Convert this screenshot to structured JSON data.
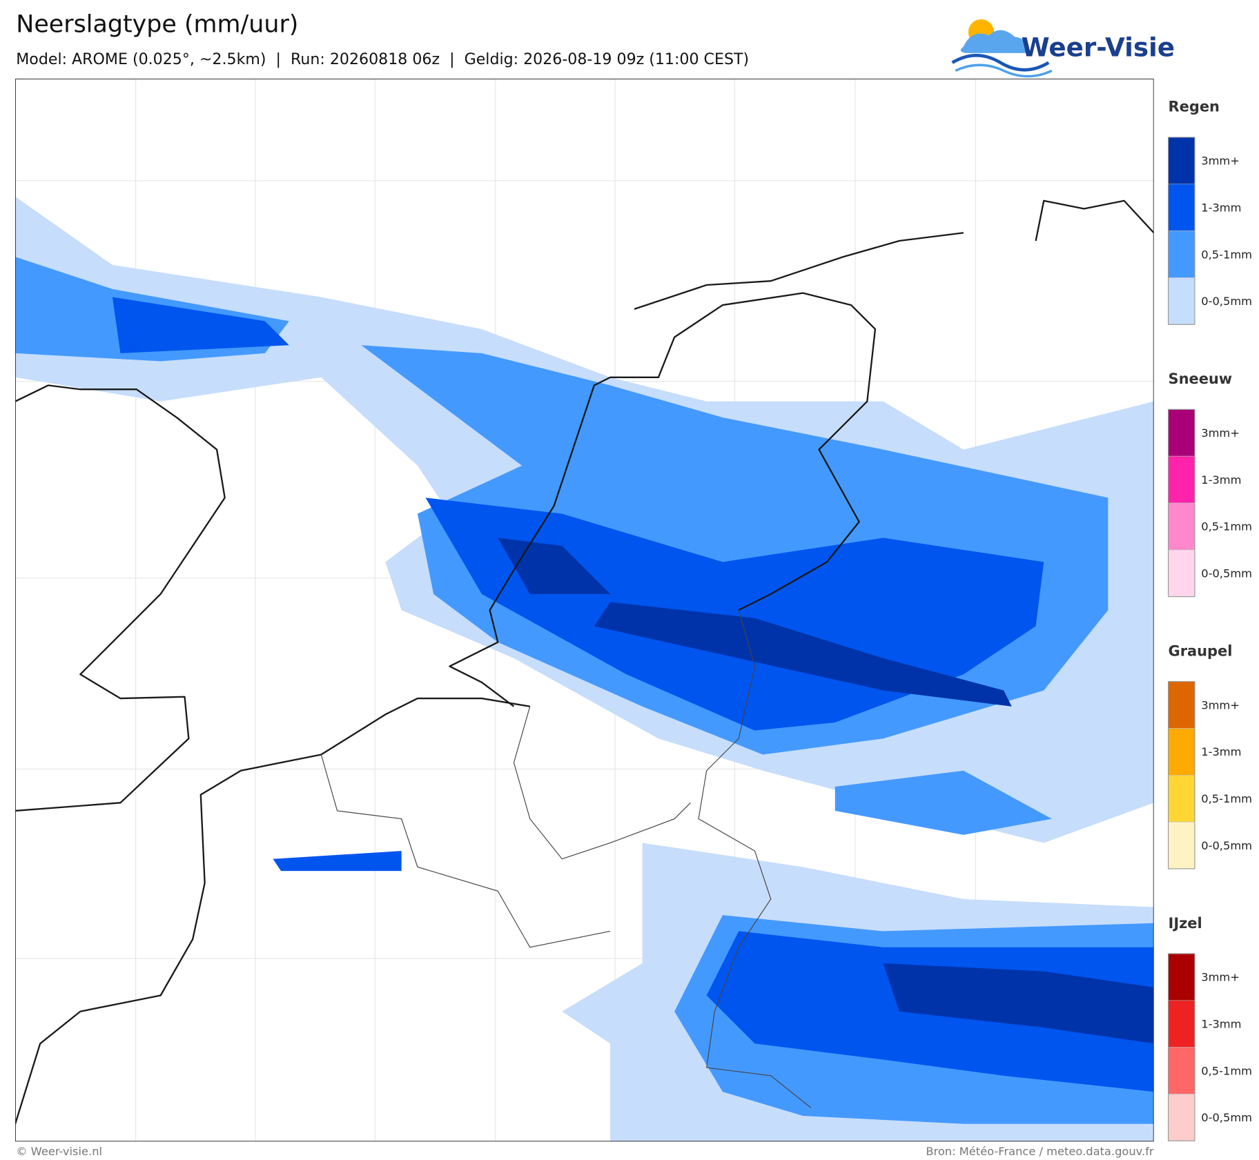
{
  "header": {
    "title": "Neerslagtype (mm/uur)",
    "subtitle": "Model: AROME (0.025°, ~2.5km)  |  Run: 20260818 06z  |  Geldig: 2026-08-19 09z (11:00 CEST)"
  },
  "logo": {
    "text": "Weer-Visie"
  },
  "legend": {
    "groups": [
      {
        "title": "Regen",
        "items": [
          {
            "label": "3mm+",
            "color": "#0033aa"
          },
          {
            "label": "1-3mm",
            "color": "#0055ee"
          },
          {
            "label": "0,5-1mm",
            "color": "#4499ff"
          },
          {
            "label": "0-0,5mm",
            "color": "#c6ddfb"
          }
        ]
      },
      {
        "title": "Sneeuw",
        "items": [
          {
            "label": "3mm+",
            "color": "#aa0077"
          },
          {
            "label": "1-3mm",
            "color": "#ff22aa"
          },
          {
            "label": "0,5-1mm",
            "color": "#ff88cc"
          },
          {
            "label": "0-0,5mm",
            "color": "#ffd6ec"
          }
        ]
      },
      {
        "title": "Graupel",
        "items": [
          {
            "label": "3mm+",
            "color": "#dd6600"
          },
          {
            "label": "1-3mm",
            "color": "#ffaa00"
          },
          {
            "label": "0,5-1mm",
            "color": "#ffd633"
          },
          {
            "label": "0-0,5mm",
            "color": "#fff3c4"
          }
        ]
      },
      {
        "title": "IJzel",
        "items": [
          {
            "label": "3mm+",
            "color": "#aa0000"
          },
          {
            "label": "1-3mm",
            "color": "#ee2222"
          },
          {
            "label": "0,5-1mm",
            "color": "#ff6666"
          },
          {
            "label": "0-0,5mm",
            "color": "#ffcccc"
          }
        ]
      }
    ]
  },
  "footer": {
    "left": "© Weer-visie.nl",
    "right": "Bron: Météo-France / meteo.data.gouv.fr"
  }
}
